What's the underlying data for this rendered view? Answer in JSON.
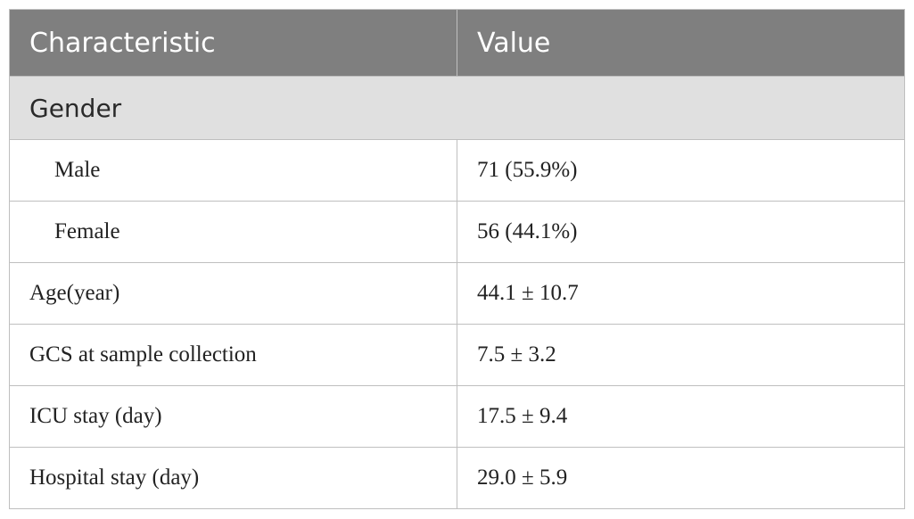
{
  "table": {
    "headers": [
      "Characteristic",
      "Value"
    ],
    "section": "Gender",
    "rows": [
      {
        "label": "Male",
        "value": "71 (55.9%)",
        "indent": true
      },
      {
        "label": "Female",
        "value": "56 (44.1%)",
        "indent": true
      },
      {
        "label": "Age(year)",
        "value": "44.1 ± 10.7",
        "indent": false
      },
      {
        "label": "GCS at sample collection",
        "value": "7.5 ± 3.2",
        "indent": false
      },
      {
        "label": "ICU stay (day)",
        "value": "17.5 ± 9.4",
        "indent": false
      },
      {
        "label": "Hospital stay (day)",
        "value": "29.0 ± 5.9",
        "indent": false
      }
    ]
  },
  "colors": {
    "header_bg": "#7f7f7f",
    "header_text": "#ffffff",
    "section_bg": "#e0e0e0",
    "border": "#bfbfbf"
  }
}
